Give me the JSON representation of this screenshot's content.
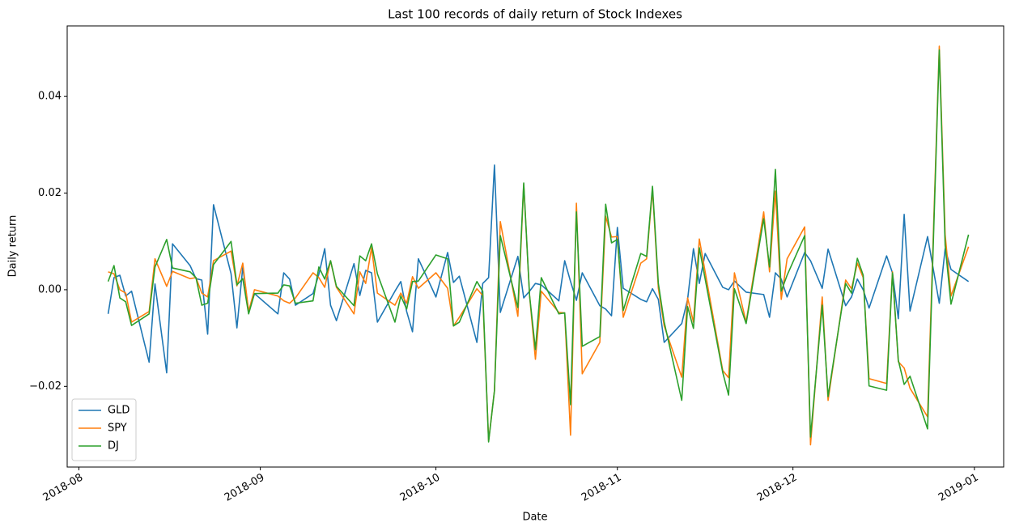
{
  "chart_data": {
    "type": "line",
    "title": "Last 100 records of daily return of Stock Indexes",
    "xlabel": "Date",
    "ylabel": "Daily return",
    "x": [
      "2018-08-06",
      "2018-08-07",
      "2018-08-08",
      "2018-08-09",
      "2018-08-10",
      "2018-08-13",
      "2018-08-14",
      "2018-08-16",
      "2018-08-17",
      "2018-08-20",
      "2018-08-21",
      "2018-08-22",
      "2018-08-23",
      "2018-08-24",
      "2018-08-27",
      "2018-08-28",
      "2018-08-29",
      "2018-08-30",
      "2018-08-31",
      "2018-09-04",
      "2018-09-05",
      "2018-09-06",
      "2018-09-07",
      "2018-09-10",
      "2018-09-11",
      "2018-09-12",
      "2018-09-13",
      "2018-09-14",
      "2018-09-17",
      "2018-09-18",
      "2018-09-19",
      "2018-09-20",
      "2018-09-21",
      "2018-09-24",
      "2018-09-25",
      "2018-09-26",
      "2018-09-27",
      "2018-09-28",
      "2018-10-01",
      "2018-10-03",
      "2018-10-04",
      "2018-10-05",
      "2018-10-08",
      "2018-10-09",
      "2018-10-10",
      "2018-10-11",
      "2018-10-12",
      "2018-10-15",
      "2018-10-16",
      "2018-10-17",
      "2018-10-18",
      "2018-10-19",
      "2018-10-22",
      "2018-10-23",
      "2018-10-24",
      "2018-10-25",
      "2018-10-26",
      "2018-10-29",
      "2018-10-30",
      "2018-10-31",
      "2018-11-01",
      "2018-11-02",
      "2018-11-05",
      "2018-11-06",
      "2018-11-07",
      "2018-11-08",
      "2018-11-09",
      "2018-11-12",
      "2018-11-13",
      "2018-11-14",
      "2018-11-15",
      "2018-11-16",
      "2018-11-19",
      "2018-11-20",
      "2018-11-21",
      "2018-11-23",
      "2018-11-26",
      "2018-11-27",
      "2018-11-28",
      "2018-11-29",
      "2018-11-30",
      "2018-12-03",
      "2018-12-04",
      "2018-12-06",
      "2018-12-07",
      "2018-12-10",
      "2018-12-11",
      "2018-12-12",
      "2018-12-13",
      "2018-12-14",
      "2018-12-17",
      "2018-12-18",
      "2018-12-19",
      "2018-12-20",
      "2018-12-21",
      "2018-12-24",
      "2018-12-26",
      "2018-12-27",
      "2018-12-28",
      "2018-12-31"
    ],
    "series": [
      {
        "name": "GLD",
        "color": "#1f77b4",
        "values": [
          -0.005,
          0.0025,
          0.003,
          -0.0013,
          -0.0003,
          -0.015,
          0.0012,
          -0.0172,
          0.0095,
          0.005,
          0.0023,
          0.002,
          -0.0092,
          0.0176,
          0.0033,
          -0.0079,
          0.0047,
          -0.0045,
          -0.0008,
          -0.005,
          0.0035,
          0.0022,
          -0.0032,
          -0.0008,
          0.0032,
          0.0085,
          -0.0032,
          -0.0064,
          0.0054,
          -0.0012,
          0.004,
          0.0035,
          -0.0067,
          -0.0003,
          0.0017,
          -0.0045,
          -0.0087,
          0.0064,
          -0.0015,
          0.0077,
          0.0015,
          0.0028,
          -0.0109,
          0.0013,
          0.0025,
          0.0258,
          -0.0047,
          0.0069,
          -0.0017,
          -0.0003,
          0.0013,
          0.001,
          -0.0023,
          0.006,
          0.0017,
          -0.0022,
          0.0035,
          -0.0033,
          -0.004,
          -0.0054,
          0.0129,
          0.0003,
          -0.002,
          -0.0025,
          0.0002,
          -0.002,
          -0.0109,
          -0.007,
          -0.002,
          0.0085,
          0.0013,
          0.0075,
          0.0005,
          0.0,
          0.0018,
          -0.0005,
          -0.001,
          -0.0057,
          0.0035,
          0.0022,
          -0.0015,
          0.0077,
          0.006,
          0.0003,
          0.0084,
          -0.0033,
          -0.0015,
          0.0022,
          0.0,
          -0.0038,
          0.007,
          0.0035,
          -0.006,
          0.0156,
          -0.0044,
          0.011,
          -0.0028,
          0.0085,
          0.0042,
          0.0017
        ]
      },
      {
        "name": "SPY",
        "color": "#ff7f0e",
        "values": [
          0.0037,
          0.0033,
          0.0,
          -0.0007,
          -0.0067,
          -0.0045,
          0.0064,
          0.0007,
          0.0038,
          0.0023,
          0.0025,
          -0.0007,
          -0.0015,
          0.006,
          0.008,
          0.0008,
          0.0055,
          -0.0045,
          0.0,
          -0.0013,
          -0.0023,
          -0.0028,
          -0.0017,
          0.0035,
          0.0025,
          0.0005,
          0.006,
          0.0005,
          -0.005,
          0.0037,
          0.0013,
          0.0087,
          -0.0007,
          -0.0032,
          -0.0007,
          -0.0028,
          0.0027,
          0.0003,
          0.0035,
          0.0003,
          -0.0075,
          -0.0057,
          0.0002,
          -0.0012,
          -0.0313,
          -0.0209,
          0.0141,
          -0.0055,
          0.0218,
          -0.0012,
          -0.0144,
          -0.0003,
          -0.0047,
          -0.0048,
          -0.0301,
          0.0179,
          -0.0174,
          -0.0109,
          0.0152,
          0.0109,
          0.011,
          -0.0057,
          0.0055,
          0.0064,
          0.0208,
          0.0003,
          -0.0075,
          -0.0181,
          -0.0017,
          -0.0067,
          0.0105,
          0.0037,
          -0.0167,
          -0.0182,
          0.0035,
          -0.0067,
          0.0161,
          0.0037,
          0.0204,
          -0.002,
          0.0064,
          0.013,
          -0.0321,
          -0.0015,
          -0.0229,
          0.002,
          0.0002,
          0.0055,
          0.0025,
          -0.0184,
          -0.0194,
          0.0037,
          -0.0149,
          -0.0162,
          -0.0204,
          -0.0263,
          0.0504,
          0.0114,
          -0.0013,
          0.0089
        ]
      },
      {
        "name": "DJ",
        "color": "#2ca02c",
        "values": [
          0.0017,
          0.005,
          -0.0017,
          -0.0025,
          -0.0074,
          -0.005,
          0.0047,
          0.0104,
          0.0045,
          0.0037,
          0.0025,
          -0.0032,
          -0.0028,
          0.0052,
          0.01,
          0.001,
          0.0023,
          -0.005,
          -0.0008,
          -0.0007,
          0.001,
          0.0008,
          -0.0028,
          -0.0023,
          0.0047,
          0.0022,
          0.006,
          0.0007,
          -0.0033,
          0.007,
          0.006,
          0.0095,
          0.0033,
          -0.0067,
          -0.0013,
          -0.004,
          0.0017,
          0.0018,
          0.0072,
          0.0064,
          -0.0075,
          -0.0067,
          0.0017,
          -0.0003,
          -0.0315,
          -0.0209,
          0.0112,
          -0.0037,
          0.0221,
          -0.0012,
          -0.0124,
          0.0025,
          -0.005,
          -0.0048,
          -0.0238,
          0.0161,
          -0.0117,
          -0.0097,
          0.0177,
          0.0097,
          0.0104,
          -0.0043,
          0.0075,
          0.0069,
          0.0214,
          0.0013,
          -0.0067,
          -0.0229,
          -0.0035,
          -0.008,
          0.0087,
          0.0022,
          -0.0171,
          -0.0218,
          0.0002,
          -0.007,
          0.0147,
          0.0047,
          0.0249,
          -0.0003,
          0.003,
          0.0112,
          -0.0305,
          -0.0032,
          -0.0221,
          0.0013,
          -0.0007,
          0.0065,
          0.003,
          -0.0199,
          -0.0208,
          0.0035,
          -0.0146,
          -0.0196,
          -0.0179,
          -0.0288,
          0.0496,
          0.0092,
          -0.003,
          0.0114
        ]
      }
    ],
    "xlim": [
      "2018-07-30",
      "2019-01-06"
    ],
    "xticks": [
      {
        "value": "2018-08-01",
        "label": "2018-08"
      },
      {
        "value": "2018-09-01",
        "label": "2018-09"
      },
      {
        "value": "2018-10-01",
        "label": "2018-10"
      },
      {
        "value": "2018-11-01",
        "label": "2018-11"
      },
      {
        "value": "2018-12-01",
        "label": "2018-12"
      },
      {
        "value": "2019-01-01",
        "label": "2019-01"
      }
    ],
    "ylim": [
      -0.0367,
      0.0546
    ],
    "yticks": [
      {
        "value": -0.02,
        "label": "−0.02"
      },
      {
        "value": 0,
        "label": "0.00"
      },
      0.02,
      0.04
    ],
    "grid": false,
    "legend": "lower left"
  }
}
